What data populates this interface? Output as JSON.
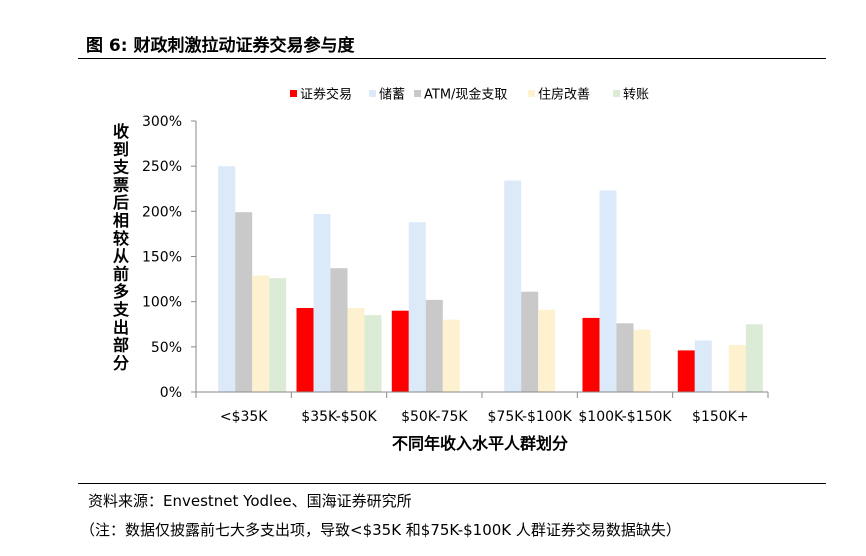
{
  "figure": {
    "title": "图 6:  财政刺激拉动证券交易参与度",
    "source": "资料来源：Envestnet Yodlee、国海证券研究所",
    "note": "（注：数据仅披露前七大多支出项，导致<$35K 和$75K-$100K 人群证券交易数据缺失）"
  },
  "chart_data": {
    "type": "bar",
    "title": "",
    "xlabel": "不同年收入水平人群划分",
    "ylabel": "收到支票后相较从前多支出部分",
    "ylim": [
      0,
      300
    ],
    "yticks": [
      "0%",
      "50%",
      "100%",
      "150%",
      "200%",
      "250%",
      "300%"
    ],
    "grid": false,
    "legend_position": "top",
    "categories": [
      "<$35K",
      "$35K-$50K",
      "$50K-75K",
      "$75K-$100K",
      "$100K-$150K",
      "$150K+"
    ],
    "series": [
      {
        "name": "证券交易",
        "color": "#ff0000",
        "values": [
          null,
          93,
          90,
          null,
          82,
          46
        ]
      },
      {
        "name": "储蓄",
        "color": "#dce9f8",
        "values": [
          250,
          197,
          188,
          234,
          223,
          57
        ]
      },
      {
        "name": "ATM/现金支取",
        "color": "#c9c9c9",
        "values": [
          199,
          137,
          102,
          111,
          76,
          null
        ]
      },
      {
        "name": "住房改善",
        "color": "#fdf1cf",
        "values": [
          129,
          93,
          80,
          91,
          69,
          52
        ]
      },
      {
        "name": "转账",
        "color": "#dcebd6",
        "values": [
          126,
          85,
          null,
          null,
          null,
          75
        ]
      }
    ]
  }
}
